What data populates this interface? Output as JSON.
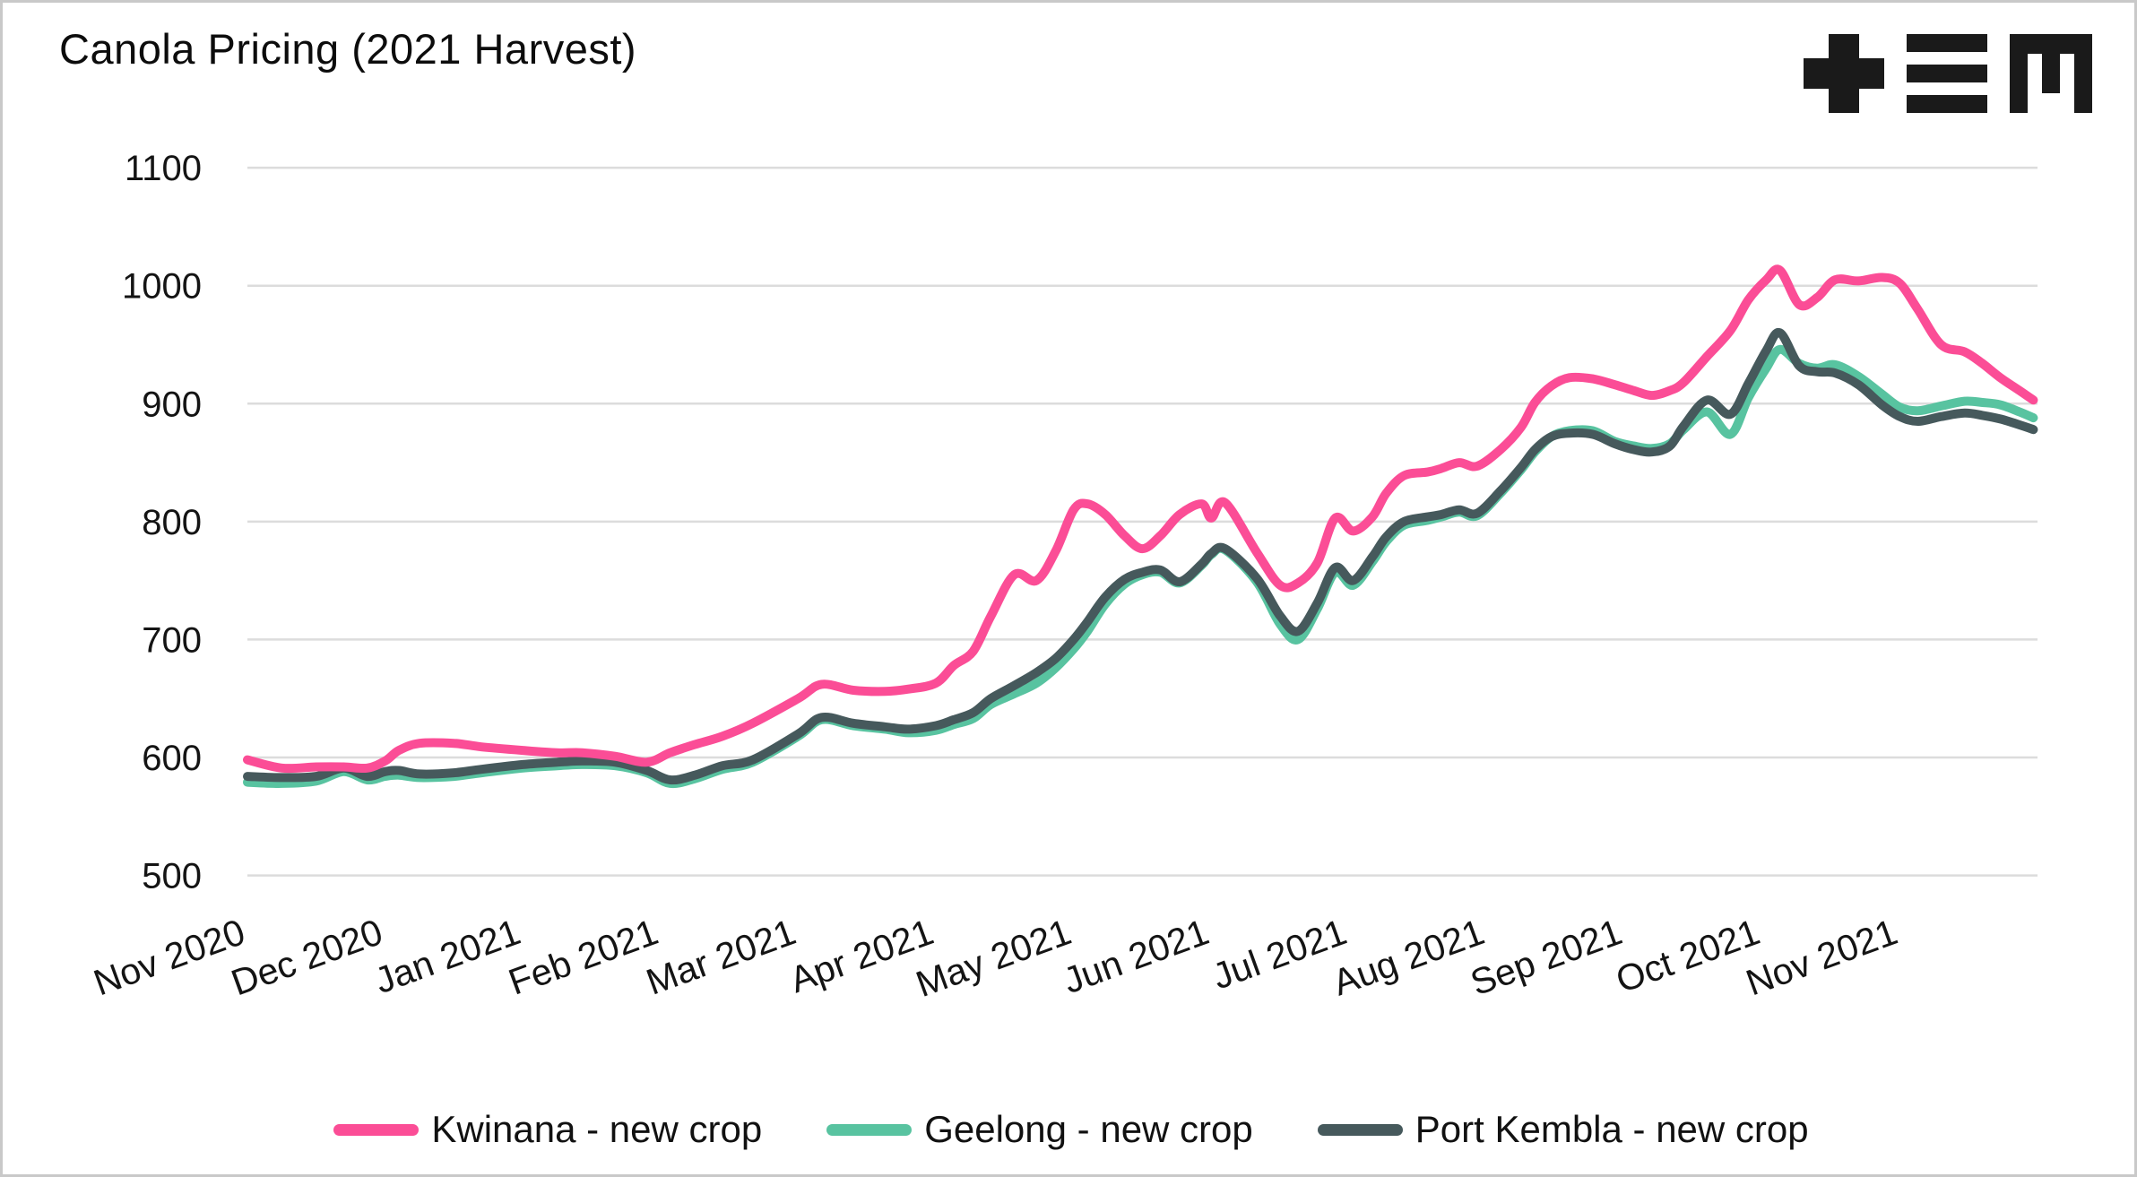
{
  "header": {
    "title": "Canola Pricing (2021 Harvest)",
    "logo": "tem-logo"
  },
  "colors": {
    "kwinana": "#fb4d96",
    "geelong": "#58c3a0",
    "port_kembla": "#46595c",
    "gridline": "#dcdcdc",
    "axis_text": "#141414",
    "title_text": "#0c0c0c",
    "logo_black": "#1a1a1a",
    "frame": "#c9c9c9",
    "background": "#ffffff"
  },
  "legend": {
    "items": [
      {
        "label": "Kwinana - new crop",
        "color": "#fb4d96"
      },
      {
        "label": "Geelong - new crop",
        "color": "#58c3a0"
      },
      {
        "label": "Port Kembla - new crop",
        "color": "#46595c"
      }
    ]
  },
  "chart_data": {
    "type": "line",
    "title": "Canola Pricing (2021 Harvest)",
    "xlabel": "",
    "ylabel": "",
    "grid": "horizontal",
    "legend_position": "bottom",
    "y_ticks": [
      500,
      600,
      700,
      800,
      900,
      1000,
      1100
    ],
    "ylim": [
      500,
      1100
    ],
    "x_tick_labels": [
      "Nov 2020",
      "Dec 2020",
      "Jan 2021",
      "Feb 2021",
      "Mar 2021",
      "Apr 2021",
      "May 2021",
      "Jun 2021",
      "Jul 2021",
      "Aug 2021",
      "Sep 2021",
      "Oct 2021",
      "Nov 2021"
    ],
    "x_range_months": [
      0,
      13
    ],
    "x_months": [
      0.0,
      0.25,
      0.5,
      0.7,
      0.87,
      1.0,
      1.1,
      1.25,
      1.5,
      1.7,
      2.0,
      2.25,
      2.43,
      2.67,
      2.9,
      3.07,
      3.25,
      3.45,
      3.67,
      4.0,
      4.17,
      4.4,
      4.63,
      4.8,
      5.0,
      5.13,
      5.27,
      5.4,
      5.57,
      5.73,
      5.87,
      6.0,
      6.1,
      6.23,
      6.37,
      6.5,
      6.63,
      6.77,
      6.93,
      7.0,
      7.1,
      7.33,
      7.5,
      7.63,
      7.77,
      7.9,
      8.03,
      8.17,
      8.27,
      8.4,
      8.57,
      8.67,
      8.8,
      8.93,
      9.1,
      9.25,
      9.35,
      9.47,
      9.6,
      9.77,
      9.93,
      10.07,
      10.2,
      10.33,
      10.43,
      10.6,
      10.77,
      10.9,
      11.03,
      11.13,
      11.27,
      11.4,
      11.53,
      11.7,
      11.87,
      12.0,
      12.13,
      12.3,
      12.47,
      12.6,
      12.73,
      12.87,
      12.97
    ],
    "series": [
      {
        "name": "Kwinana - new crop",
        "color": "#fb4d96",
        "values": [
          598,
          591,
          592,
          592,
          591,
          597,
          606,
          612,
          612,
          609,
          606,
          604,
          604,
          601,
          596,
          604,
          611,
          618,
          629,
          650,
          662,
          657,
          656,
          658,
          663,
          678,
          690,
          720,
          755,
          750,
          775,
          810,
          815,
          806,
          788,
          777,
          788,
          806,
          815,
          803,
          816,
          774,
          746,
          748,
          765,
          803,
          792,
          804,
          824,
          839,
          842,
          845,
          850,
          847,
          861,
          880,
          901,
          915,
          922,
          921,
          916,
          911,
          907,
          911,
          918,
          940,
          962,
          988,
          1005,
          1013,
          984,
          990,
          1005,
          1004,
          1007,
          1002,
          980,
          950,
          944,
          934,
          922,
          911,
          903
        ]
      },
      {
        "name": "Geelong - new crop",
        "color": "#58c3a0",
        "values": [
          579,
          578,
          580,
          588,
          581,
          584,
          585,
          583,
          584,
          587,
          591,
          593,
          594,
          593,
          587,
          578,
          582,
          590,
          596,
          618,
          632,
          627,
          624,
          621,
          623,
          628,
          633,
          645,
          654,
          663,
          676,
          692,
          707,
          730,
          747,
          755,
          757,
          748,
          763,
          772,
          776,
          749,
          713,
          700,
          726,
          757,
          746,
          766,
          783,
          797,
          801,
          804,
          808,
          805,
          824,
          844,
          859,
          872,
          877,
          877,
          868,
          864,
          862,
          866,
          878,
          893,
          874,
          905,
          930,
          946,
          934,
          930,
          933,
          923,
          908,
          897,
          894,
          898,
          902,
          901,
          899,
          893,
          888
        ]
      },
      {
        "name": "Port Kembla - new crop",
        "color": "#46595c",
        "values": [
          584,
          583,
          584,
          591,
          584,
          588,
          589,
          586,
          587,
          590,
          594,
          596,
          597,
          596,
          589,
          581,
          585,
          593,
          598,
          620,
          634,
          629,
          626,
          624,
          627,
          632,
          638,
          650,
          661,
          672,
          684,
          700,
          715,
          736,
          751,
          757,
          759,
          749,
          764,
          773,
          777,
          752,
          720,
          707,
          731,
          761,
          750,
          770,
          787,
          800,
          804,
          806,
          810,
          807,
          826,
          846,
          861,
          872,
          875,
          874,
          866,
          861,
          859,
          864,
          881,
          903,
          891,
          917,
          945,
          960,
          932,
          927,
          926,
          916,
          899,
          889,
          885,
          889,
          892,
          890,
          887,
          882,
          878
        ]
      }
    ]
  }
}
